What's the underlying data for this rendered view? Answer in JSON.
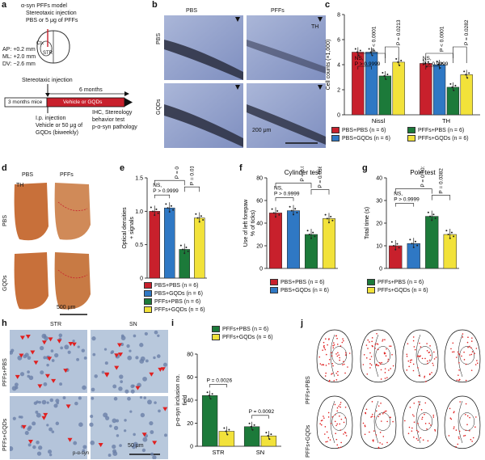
{
  "letters": {
    "a": "a",
    "b": "b",
    "c": "c",
    "d": "d",
    "e": "e",
    "f": "f",
    "g": "g",
    "h": "h",
    "i": "i",
    "j": "j"
  },
  "colors": {
    "red": "#c8202c",
    "blue": "#2f78c4",
    "green": "#1c7a3a",
    "yellow": "#f2e23a",
    "micro_blue": "#7f8fc0",
    "brain_orange": "#c8703a",
    "dots_red": "#e02020"
  },
  "panel_a": {
    "model": "α-syn PFFs model",
    "injection": "Stereotaxic injection",
    "injection_detail": "PBS or 5 μg of PFFs",
    "coords": [
      "AP: +0.2 mm",
      "ML: +2.0 mm",
      "DV: −2.6 mm"
    ],
    "ctx": "Ctx",
    "str": "STR",
    "stereo": "Stereotaxic injection",
    "months6": "6 months",
    "mice": "3 months mice",
    "vehicle": "Vehicle or GQDs",
    "ip": "I.p. injection",
    "ip_detail": [
      "Vehicle or 50 μg of",
      "GQDs (biweekly)"
    ],
    "outcome": [
      "IHC, Stereology",
      "behavior test",
      "p-α-syn pathology"
    ]
  },
  "panel_b": {
    "col1": "PBS",
    "col2": "PFFs",
    "row1": "PBS",
    "row2": "GQDs",
    "stain": "TH",
    "scale": "200 μm"
  },
  "panel_d": {
    "col1": "PBS",
    "col2": "PFFs",
    "row1": "PBS",
    "row2": "GQDs",
    "stain": "TH",
    "scale": "500 μm"
  },
  "panel_h": {
    "col1": "STR",
    "col2": "SN",
    "row1": "PFFs+PBS",
    "row2": "PFFs+GQDs",
    "stain": "p-α-syn",
    "scale": "50 μm"
  },
  "panel_j": {
    "row1": "PFFs+PBS",
    "row2": "PFFs+GQDs"
  },
  "legend4": [
    "PBS+PBS (n = 6)",
    "PBS+GQDs (n = 6)",
    "PFFs+PBS (n = 6)",
    "PFFs+GQDs (n = 6)"
  ],
  "legend2": [
    "PFFs+PBS (n = 6)",
    "PFFs+GQDs (n = 6)"
  ],
  "chart_data": [
    {
      "panel": "c",
      "type": "bar",
      "ylabel": "Cell counts (×1,000)",
      "ylim": [
        0,
        8
      ],
      "yticks": [
        "0",
        "2",
        "4",
        "6",
        "8"
      ],
      "categories": [
        "Nissl",
        "TH"
      ],
      "series": [
        {
          "name": "PBS+PBS (n = 6)",
          "values": [
            5.0,
            4.1
          ]
        },
        {
          "name": "PBS+GQDs (n = 6)",
          "values": [
            5.0,
            4.0
          ]
        },
        {
          "name": "PFFs+PBS (n = 6)",
          "values": [
            3.1,
            2.2
          ]
        },
        {
          "name": "PFFs+GQDs (n = 6)",
          "values": [
            4.2,
            3.2
          ]
        }
      ],
      "annotations": [
        "NS,",
        "P > 0.9999",
        "P < 0.0001",
        "P = 0.0213",
        "NS,",
        "P > 0.9999",
        "P < 0.0001",
        "P = 0.0282"
      ]
    },
    {
      "panel": "e",
      "type": "bar",
      "ylabel": "Optical densities TH+ signals",
      "ylim": [
        0,
        1.5
      ],
      "yticks": [
        "0",
        "0.5",
        "1.0",
        "1.5"
      ],
      "categories": [
        "PBS+PBS",
        "PBS+GQDs",
        "PFFs+PBS",
        "PFFs+GQDs"
      ],
      "values": [
        1.0,
        1.05,
        0.43,
        0.9
      ],
      "annotations": [
        "NS,",
        "P > 0.9999",
        "P = 0.0027",
        "P = 0.0156"
      ]
    },
    {
      "panel": "f",
      "type": "bar",
      "title": "Cylinder test",
      "ylabel": "Use of left forepaw (% of ticks)",
      "ylim": [
        0,
        80
      ],
      "yticks": [
        "0",
        "20",
        "40",
        "60",
        "80"
      ],
      "categories": [
        "PBS+PBS",
        "PBS+GQDs",
        "PFFs+PBS",
        "PFFs+GQDs"
      ],
      "values": [
        49,
        51,
        30,
        44
      ],
      "annotations": [
        "NS,",
        "P > 0.9999",
        "P = 0.0012",
        "P = 0.0366"
      ]
    },
    {
      "panel": "g",
      "type": "bar",
      "title": "Pole test",
      "ylabel": "Total time (s)",
      "ylim": [
        0,
        40
      ],
      "yticks": [
        "0",
        "10",
        "20",
        "30",
        "40"
      ],
      "categories": [
        "PBS+PBS",
        "PBS+GQDs",
        "PFFs+PBS",
        "PFFs+GQDs"
      ],
      "values": [
        10,
        11,
        23,
        15
      ],
      "annotations": [
        "NS,",
        "P > 0.9999",
        "P = 0.0011",
        "P = 0.0382"
      ]
    },
    {
      "panel": "i",
      "type": "bar",
      "ylabel": "p-α-syn inclusion no. per field",
      "ylim": [
        0,
        80
      ],
      "yticks": [
        "0",
        "20",
        "40",
        "60",
        "80"
      ],
      "categories": [
        "STR",
        "SN"
      ],
      "series": [
        {
          "name": "PFFs+PBS (n = 6)",
          "values": [
            44,
            17
          ]
        },
        {
          "name": "PFFs+GQDs (n = 6)",
          "values": [
            13,
            9
          ]
        }
      ],
      "annotations": [
        "P = 0.0026",
        "P = 0.0092"
      ]
    }
  ]
}
